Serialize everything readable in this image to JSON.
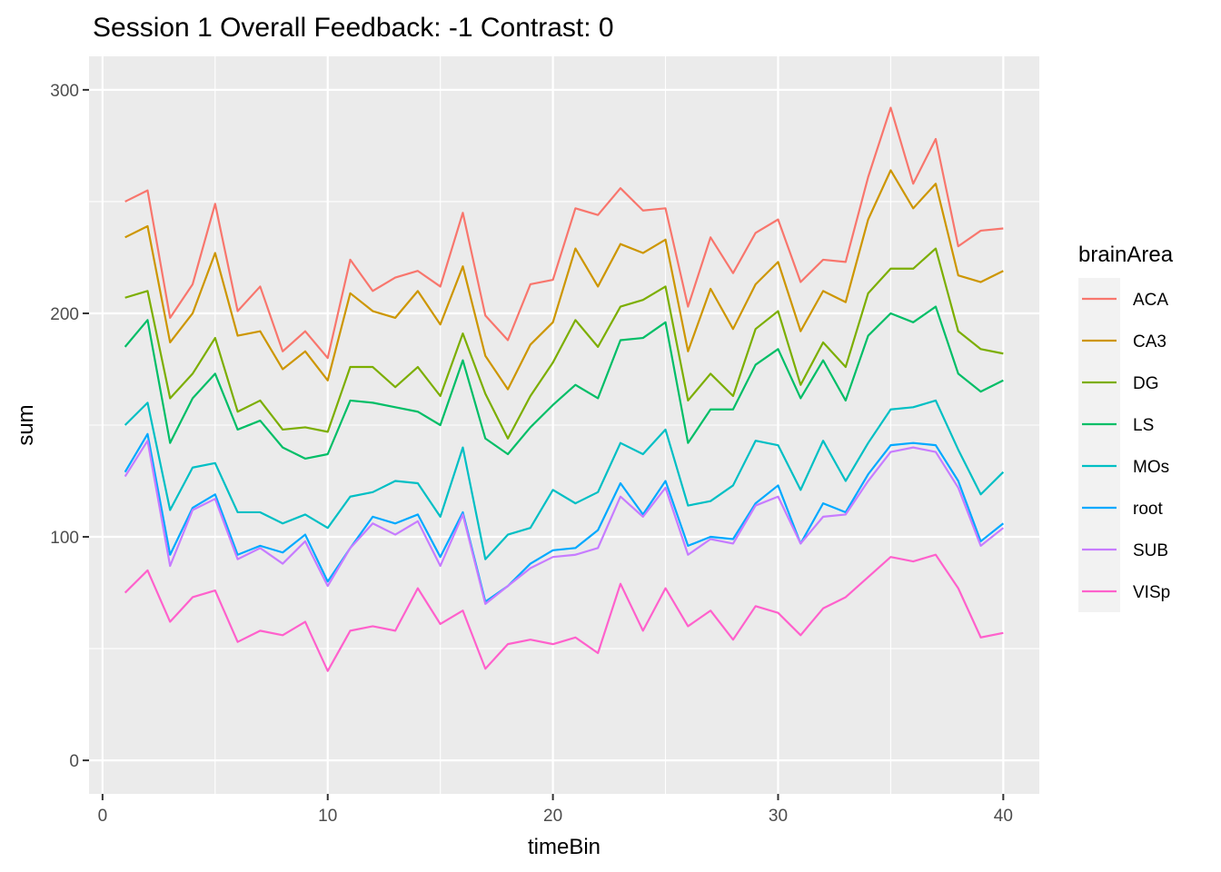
{
  "chart_data": {
    "type": "line",
    "title": "Session 1 Overall Feedback: -1 Contrast: 0",
    "xlabel": "timeBin",
    "ylabel": "sum",
    "xlim": [
      -0.6,
      41.6
    ],
    "ylim": [
      -15,
      315
    ],
    "x_ticks": [
      0,
      10,
      20,
      30,
      40
    ],
    "y_ticks": [
      0,
      100,
      200,
      300
    ],
    "grid": true,
    "legend_title": "brainArea",
    "legend_position": "right",
    "x": [
      1,
      2,
      3,
      4,
      5,
      6,
      7,
      8,
      9,
      10,
      11,
      12,
      13,
      14,
      15,
      16,
      17,
      18,
      19,
      20,
      21,
      22,
      23,
      24,
      25,
      26,
      27,
      28,
      29,
      30,
      31,
      32,
      33,
      34,
      35,
      36,
      37,
      38,
      39,
      40
    ],
    "series": [
      {
        "name": "ACA",
        "color": "#F8766D",
        "values": [
          250,
          255,
          198,
          213,
          249,
          201,
          212,
          183,
          192,
          180,
          224,
          210,
          216,
          219,
          212,
          245,
          199,
          188,
          213,
          215,
          247,
          244,
          256,
          246,
          247,
          203,
          234,
          218,
          236,
          242,
          214,
          224,
          223,
          261,
          292,
          258,
          278,
          230,
          237,
          238
        ]
      },
      {
        "name": "CA3",
        "color": "#CD9600",
        "values": [
          234,
          239,
          187,
          200,
          227,
          190,
          192,
          175,
          183,
          170,
          209,
          201,
          198,
          210,
          195,
          221,
          181,
          166,
          186,
          196,
          229,
          212,
          231,
          227,
          233,
          183,
          211,
          193,
          213,
          223,
          192,
          210,
          205,
          242,
          264,
          247,
          258,
          217,
          214,
          219
        ]
      },
      {
        "name": "DG",
        "color": "#7CAE00",
        "values": [
          207,
          210,
          162,
          173,
          189,
          156,
          161,
          148,
          149,
          147,
          176,
          176,
          167,
          176,
          163,
          191,
          164,
          144,
          163,
          178,
          197,
          185,
          203,
          206,
          212,
          161,
          173,
          163,
          193,
          201,
          168,
          187,
          176,
          209,
          220,
          220,
          229,
          192,
          184,
          182
        ]
      },
      {
        "name": "LS",
        "color": "#00BE67",
        "values": [
          185,
          197,
          142,
          162,
          173,
          148,
          152,
          140,
          135,
          137,
          161,
          160,
          158,
          156,
          150,
          179,
          144,
          137,
          149,
          159,
          168,
          162,
          188,
          189,
          196,
          142,
          157,
          157,
          177,
          184,
          162,
          179,
          161,
          190,
          200,
          196,
          203,
          173,
          165,
          170
        ]
      },
      {
        "name": "MOs",
        "color": "#00BFC4",
        "values": [
          150,
          160,
          112,
          131,
          133,
          111,
          111,
          106,
          110,
          104,
          118,
          120,
          125,
          124,
          109,
          140,
          90,
          101,
          104,
          121,
          115,
          120,
          142,
          137,
          148,
          114,
          116,
          123,
          143,
          141,
          121,
          143,
          125,
          142,
          157,
          158,
          161,
          139,
          119,
          129
        ]
      },
      {
        "name": "root",
        "color": "#00A9FF",
        "values": [
          129,
          146,
          92,
          113,
          119,
          92,
          96,
          93,
          101,
          80,
          95,
          109,
          106,
          110,
          91,
          111,
          71,
          78,
          88,
          94,
          95,
          103,
          124,
          110,
          125,
          96,
          100,
          99,
          115,
          123,
          97,
          115,
          111,
          128,
          141,
          142,
          141,
          125,
          98,
          106
        ]
      },
      {
        "name": "SUB",
        "color": "#C77CFF",
        "values": [
          127,
          143,
          87,
          112,
          117,
          90,
          95,
          88,
          98,
          78,
          95,
          106,
          101,
          107,
          87,
          110,
          70,
          78,
          86,
          91,
          92,
          95,
          118,
          109,
          122,
          92,
          99,
          97,
          114,
          118,
          97,
          109,
          110,
          125,
          138,
          140,
          138,
          122,
          96,
          104
        ]
      },
      {
        "name": "VISp",
        "color": "#FF61CC",
        "values": [
          75,
          85,
          62,
          73,
          76,
          53,
          58,
          56,
          62,
          40,
          58,
          60,
          58,
          77,
          61,
          67,
          41,
          52,
          54,
          52,
          55,
          48,
          79,
          58,
          77,
          60,
          67,
          54,
          69,
          66,
          56,
          68,
          73,
          82,
          91,
          89,
          92,
          77,
          55,
          57
        ]
      }
    ]
  }
}
